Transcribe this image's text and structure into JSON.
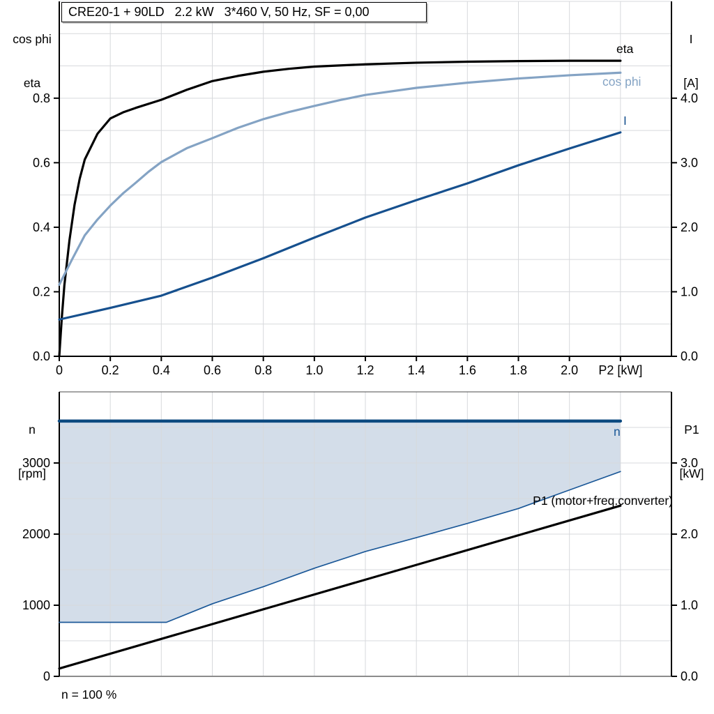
{
  "title_box": {
    "text": "CRE20-1 + 90LD   2.2 kW   3*460 V, 50 Hz, SF = 0,00"
  },
  "axis_corner_labels": {
    "top_left": [
      "cos phi",
      "eta"
    ],
    "top_right": [
      "I",
      "[A]"
    ],
    "bottom_left": [
      "n",
      "[rpm]"
    ],
    "bottom_right": [
      "P1",
      "[kW]"
    ]
  },
  "curve_labels": {
    "eta": "eta",
    "cos_phi": "cos phi",
    "current": "I",
    "n": "n",
    "p1": "P1 (motor+freq.converter)"
  },
  "annotation": {
    "text": "n = 100 %"
  },
  "colors": {
    "eta": "#000000",
    "cos_phi": "#84a3c4",
    "current": "#16508e",
    "n_line": "#0d4a80",
    "n_boundary": "#1b5898",
    "p1_line": "#000000",
    "area_fill": "#d3dde9",
    "grid": "#d7d9dc",
    "axis": "#000000",
    "bottom_axis_gray": "#8c8c8c"
  },
  "chart_data": [
    {
      "type": "line",
      "title": "CRE20-1 + 90LD   2.2 kW   3*460 V, 50 Hz, SF = 0,00",
      "xlabel": "P2 [kW]",
      "xlabel_v": 2.2,
      "ylabel_left": "cos phi / eta",
      "ylabel_right": "I [A]",
      "xlim": [
        0,
        2.4
      ],
      "ylim_left": [
        0,
        1.1
      ],
      "ylim_right": [
        0,
        5.5
      ],
      "grid_x": [
        0.2,
        0.4,
        0.6,
        0.8,
        1.0,
        1.2,
        1.4,
        1.6,
        1.8,
        2.0,
        2.2
      ],
      "grid_y": [
        0.1,
        0.2,
        0.3,
        0.4,
        0.5,
        0.6,
        0.7,
        0.8,
        0.9,
        1.0
      ],
      "frame": {
        "top_color": "#d7d9dc",
        "bottom_color": "#000000"
      },
      "x_ticks": [
        {
          "v": 0,
          "label": "0"
        },
        {
          "v": 0.2,
          "label": "0.2"
        },
        {
          "v": 0.4,
          "label": "0.4"
        },
        {
          "v": 0.6,
          "label": "0.6"
        },
        {
          "v": 0.8,
          "label": "0.8"
        },
        {
          "v": 1.0,
          "label": "1.0"
        },
        {
          "v": 1.2,
          "label": "1.2"
        },
        {
          "v": 1.4,
          "label": "1.4"
        },
        {
          "v": 1.6,
          "label": "1.6"
        },
        {
          "v": 1.8,
          "label": "1.8"
        },
        {
          "v": 2.0,
          "label": "2.0"
        },
        {
          "v": 2.2,
          "label": ""
        }
      ],
      "left_ticks": [
        {
          "v": 0,
          "label": "0.0"
        },
        {
          "v": 0.2,
          "label": "0.2"
        },
        {
          "v": 0.4,
          "label": "0.4"
        },
        {
          "v": 0.6,
          "label": "0.6"
        },
        {
          "v": 0.8,
          "label": "0.8"
        }
      ],
      "right_ticks": [
        {
          "v": 0,
          "label": "0.0"
        },
        {
          "v": 1,
          "label": "1.0"
        },
        {
          "v": 2,
          "label": "2.0"
        },
        {
          "v": 3,
          "label": "3.0"
        },
        {
          "v": 4,
          "label": "4.0"
        }
      ],
      "series": [
        {
          "name": "eta",
          "axis": "left",
          "color_key": "eta",
          "width": 3.2,
          "points": [
            [
              0,
              0
            ],
            [
              0.01,
              0.12
            ],
            [
              0.02,
              0.22
            ],
            [
              0.04,
              0.36
            ],
            [
              0.06,
              0.47
            ],
            [
              0.08,
              0.55
            ],
            [
              0.1,
              0.61
            ],
            [
              0.15,
              0.69
            ],
            [
              0.2,
              0.737
            ],
            [
              0.25,
              0.756
            ],
            [
              0.3,
              0.77
            ],
            [
              0.4,
              0.795
            ],
            [
              0.5,
              0.826
            ],
            [
              0.6,
              0.853
            ],
            [
              0.7,
              0.869
            ],
            [
              0.8,
              0.882
            ],
            [
              0.9,
              0.891
            ],
            [
              1.0,
              0.898
            ],
            [
              1.2,
              0.905
            ],
            [
              1.4,
              0.91
            ],
            [
              1.6,
              0.913
            ],
            [
              1.8,
              0.915
            ],
            [
              2.0,
              0.916
            ],
            [
              2.2,
              0.916
            ]
          ]
        },
        {
          "name": "cos phi",
          "axis": "left",
          "color_key": "cos_phi",
          "width": 3.2,
          "points": [
            [
              0,
              0.222
            ],
            [
              0.05,
              0.3
            ],
            [
              0.1,
              0.375
            ],
            [
              0.15,
              0.424
            ],
            [
              0.2,
              0.467
            ],
            [
              0.25,
              0.505
            ],
            [
              0.3,
              0.538
            ],
            [
              0.35,
              0.572
            ],
            [
              0.4,
              0.602
            ],
            [
              0.5,
              0.645
            ],
            [
              0.6,
              0.676
            ],
            [
              0.7,
              0.708
            ],
            [
              0.8,
              0.735
            ],
            [
              0.9,
              0.757
            ],
            [
              1.0,
              0.776
            ],
            [
              1.1,
              0.794
            ],
            [
              1.2,
              0.81
            ],
            [
              1.4,
              0.832
            ],
            [
              1.6,
              0.848
            ],
            [
              1.8,
              0.861
            ],
            [
              2.0,
              0.871
            ],
            [
              2.2,
              0.879
            ]
          ]
        },
        {
          "name": "I",
          "axis": "right",
          "color_key": "current",
          "width": 3.2,
          "points": [
            [
              0,
              0.57
            ],
            [
              0.2,
              0.75
            ],
            [
              0.4,
              0.94
            ],
            [
              0.6,
              1.22
            ],
            [
              0.8,
              1.52
            ],
            [
              1.0,
              1.84
            ],
            [
              1.2,
              2.15
            ],
            [
              1.4,
              2.42
            ],
            [
              1.6,
              2.68
            ],
            [
              1.8,
              2.96
            ],
            [
              2.0,
              3.22
            ],
            [
              2.2,
              3.47
            ]
          ]
        }
      ]
    },
    {
      "type": "line",
      "xlabel": "",
      "ylabel_left": "n [rpm]",
      "ylabel_right": "P1 [kW]",
      "annotation": "n = 100 %",
      "xlim": [
        0,
        2.4
      ],
      "ylim_left": [
        0,
        4000
      ],
      "ylim_right": [
        0,
        4
      ],
      "grid_x": [
        0.2,
        0.4,
        0.6,
        0.8,
        1.0,
        1.2,
        1.4,
        1.6,
        1.8,
        2.0,
        2.2
      ],
      "grid_y": [
        500,
        1000,
        1500,
        2000,
        2500,
        3000,
        3500
      ],
      "frame": {
        "top_color": "#4a4a4a",
        "bottom_color": "#8c8c8c"
      },
      "x_ticks": [],
      "left_ticks": [
        {
          "v": 0,
          "label": "0"
        },
        {
          "v": 1000,
          "label": "1000"
        },
        {
          "v": 2000,
          "label": "2000"
        },
        {
          "v": 3000,
          "label": "3000"
        }
      ],
      "right_ticks": [
        {
          "v": 0,
          "label": "0.0"
        },
        {
          "v": 1,
          "label": "1.0"
        },
        {
          "v": 2,
          "label": "2.0"
        },
        {
          "v": 3,
          "label": "3.0"
        }
      ],
      "area": {
        "lower_series": "n envelope lower",
        "upper_value": 3590,
        "fill_key": "area_fill"
      },
      "series": [
        {
          "name": "n envelope lower",
          "axis": "left",
          "color_key": "n_boundary",
          "width": 1.7,
          "points": [
            [
              0,
              760
            ],
            [
              0.42,
              760
            ],
            [
              0.6,
              1020
            ],
            [
              0.8,
              1260
            ],
            [
              1.0,
              1520
            ],
            [
              1.2,
              1755
            ],
            [
              1.4,
              1950
            ],
            [
              1.6,
              2150
            ],
            [
              1.8,
              2360
            ],
            [
              2.0,
              2620
            ],
            [
              2.2,
              2880
            ]
          ]
        },
        {
          "name": "n",
          "axis": "left",
          "color_key": "n_line",
          "width": 4.5,
          "points": [
            [
              0,
              3590
            ],
            [
              2.2,
              3590
            ]
          ]
        },
        {
          "name": "P1 (motor+freq.converter)",
          "axis": "right",
          "color_key": "p1_line",
          "width": 3.2,
          "points": [
            [
              0,
              0.11
            ],
            [
              2.2,
              2.4
            ]
          ]
        }
      ]
    }
  ]
}
